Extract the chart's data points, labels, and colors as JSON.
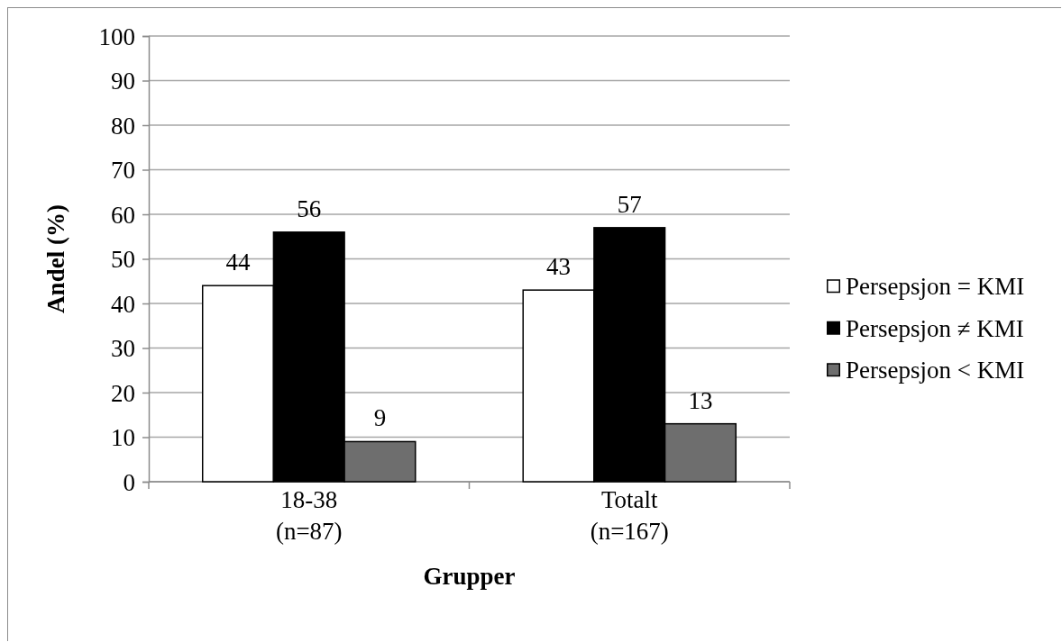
{
  "chart_data": {
    "type": "bar",
    "xlabel": "Grupper",
    "ylabel": "Andel (%)",
    "categories": [
      "18-38\n(n=87)",
      "Totalt\n(n=167)"
    ],
    "series": [
      {
        "name": "Persepsjon = KMI",
        "color": "#ffffff",
        "values": [
          44,
          43
        ]
      },
      {
        "name": "Persepsjon ≠ KMI",
        "color": "#000000",
        "values": [
          56,
          57
        ]
      },
      {
        "name": "Persepsjon < KMI",
        "color": "#6e6e6e",
        "values": [
          9,
          13
        ]
      }
    ],
    "ylim": [
      0,
      100
    ],
    "yticks": [
      0,
      10,
      20,
      30,
      40,
      50,
      60,
      70,
      80,
      90,
      100
    ],
    "grid": "y",
    "legend": "right",
    "data_labels": true
  }
}
